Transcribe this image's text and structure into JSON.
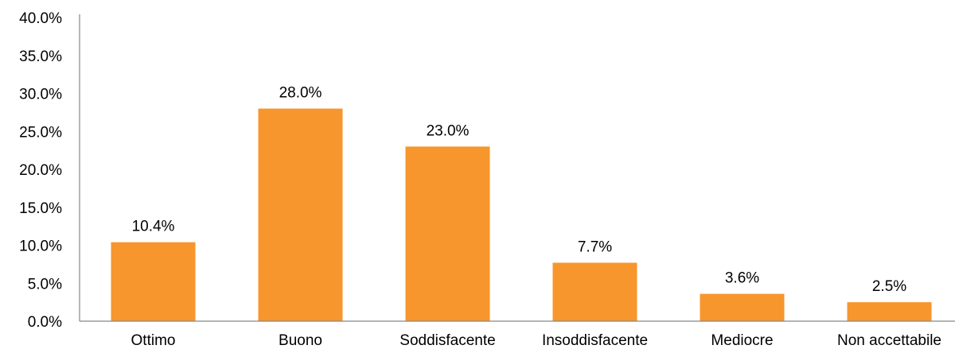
{
  "chart_data": {
    "type": "bar",
    "title": "",
    "xlabel": "",
    "ylabel": "",
    "categories": [
      "Ottimo",
      "Buono",
      "Soddisfacente",
      "Insoddisfacente",
      "Mediocre",
      "Non accettabile"
    ],
    "values": [
      10.4,
      28.0,
      23.0,
      7.7,
      3.6,
      2.5
    ],
    "data_labels": [
      "10.4%",
      "28.0%",
      "23.0%",
      "7.7%",
      "3.6%",
      "2.5%"
    ],
    "ylim": [
      0,
      40
    ],
    "yticks": [
      0,
      5,
      10,
      15,
      20,
      25,
      30,
      35,
      40
    ],
    "ytick_labels": [
      "0.0%",
      "5.0%",
      "10.0%",
      "15.0%",
      "20.0%",
      "25.0%",
      "30.0%",
      "35.0%",
      "40.0%"
    ],
    "grid": false,
    "legend": "none",
    "colors": {
      "bar": "#F7962C",
      "axis": "#878787",
      "text": "#000000"
    }
  }
}
